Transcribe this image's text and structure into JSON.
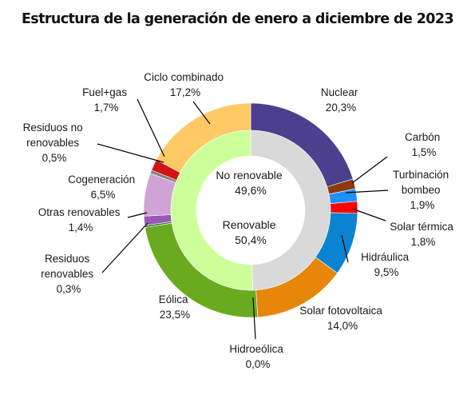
{
  "chart_data": {
    "type": "pie",
    "title": "Estructura de la generación de enero a diciembre de 2023",
    "inner_ring": [
      {
        "name": "No renovable",
        "value_label": "49,6%",
        "value": 49.6,
        "color": "#d9d9d9"
      },
      {
        "name": "Renovable",
        "value_label": "50,4%",
        "value": 50.4,
        "color": "#ccff99"
      }
    ],
    "outer_ring": [
      {
        "name": "Nuclear",
        "value_label": "20,3%",
        "value": 20.3,
        "color": "#4b3f8e"
      },
      {
        "name": "Carbón",
        "value_label": "1,5%",
        "value": 1.5,
        "color": "#8b3a10"
      },
      {
        "name": "Turbinación bombeo",
        "value_label": "1,9%",
        "value": 1.9,
        "color": "#1e90ff"
      },
      {
        "name": "Solar térmica",
        "value_label": "1,8%",
        "value": 1.8,
        "color": "#ff0000"
      },
      {
        "name": "Hidráulica",
        "value_label": "9,5%",
        "value": 9.5,
        "color": "#0a84d0"
      },
      {
        "name": "Solar fotovoltaica",
        "value_label": "14,0%",
        "value": 14.0,
        "color": "#e6870a"
      },
      {
        "name": "Hidroeólica",
        "value_label": "0,0%",
        "value": 0.0,
        "color": "#2f5597"
      },
      {
        "name": "Eólica",
        "value_label": "23,5%",
        "value": 23.5,
        "color": "#6aaa1e"
      },
      {
        "name": "Residuos renovables",
        "value_label": "0,3%",
        "value": 0.3,
        "color": "#2e7d32"
      },
      {
        "name": "Otras renovables",
        "value_label": "1,4%",
        "value": 1.4,
        "color": "#9b59b6"
      },
      {
        "name": "Cogeneración",
        "value_label": "6,5%",
        "value": 6.5,
        "color": "#cfa3d4"
      },
      {
        "name": "Residuos no renovables",
        "value_label": "0,5%",
        "value": 0.5,
        "color": "#7f7f7f"
      },
      {
        "name": "Fuel+gas",
        "value_label": "1,7%",
        "value": 1.7,
        "color": "#d21414"
      },
      {
        "name": "Ciclo combinado",
        "value_label": "17,2%",
        "value": 17.2,
        "color": "#ffc966"
      }
    ],
    "labels": {
      "nuclear": {
        "line1": "Nuclear",
        "line2": "20,3%"
      },
      "carbon": {
        "line1": "Carbón",
        "line2": "1,5%"
      },
      "turbinacion": {
        "line1": "Turbinación",
        "line2": "bombeo",
        "line3": "1,9%"
      },
      "solar_termica": {
        "line1": "Solar térmica",
        "line2": "1,8%"
      },
      "hidraulica": {
        "line1": "Hidráulica",
        "line2": "9,5%"
      },
      "solar_fv": {
        "line1": "Solar fotovoltaica",
        "line2": "14,0%"
      },
      "hidroeolica": {
        "line1": "Hidroeólica",
        "line2": "0,0%"
      },
      "eolica": {
        "line1": "Eólica",
        "line2": "23,5%"
      },
      "residuos_renovables": {
        "line1": "Residuos",
        "line2": "renovables",
        "line3": "0,3%"
      },
      "otras_renovables": {
        "line1": "Otras renovables",
        "line2": "1,4%"
      },
      "cogeneracion": {
        "line1": "Cogeneración",
        "line2": "6,5%"
      },
      "residuos_no_renovables": {
        "line1": "Residuos no",
        "line2": "renovables",
        "line3": "0,5%"
      },
      "fuel_gas": {
        "line1": "Fuel+gas",
        "line2": "1,7%"
      },
      "ciclo_combinado": {
        "line1": "Ciclo combinado",
        "line2": "17,2%"
      },
      "no_renovable": {
        "line1": "No renovable",
        "line2": "49,6%"
      },
      "renovable": {
        "line1": "Renovable",
        "line2": "50,4%"
      }
    }
  }
}
